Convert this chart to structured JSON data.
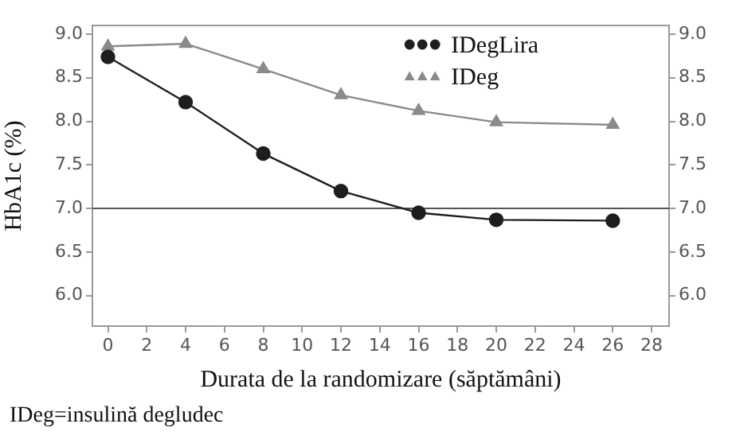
{
  "chart_data": {
    "type": "line",
    "xlabel": "Durata de la randomizare (săptămâni)",
    "ylabel": "HbA1c (%)",
    "x": [
      0,
      4,
      8,
      12,
      16,
      20,
      26
    ],
    "series": [
      {
        "name": "IDegLira",
        "color": "#1e1e1e",
        "marker": "circle",
        "values": [
          8.74,
          8.22,
          7.63,
          7.2,
          6.95,
          6.87,
          6.86
        ]
      },
      {
        "name": "IDeg",
        "color": "#8a8a8a",
        "marker": "triangle",
        "values": [
          8.86,
          8.89,
          8.6,
          8.3,
          8.12,
          7.99,
          7.96
        ]
      }
    ],
    "xlim": [
      -0.8,
      28.9
    ],
    "xticks": [
      0,
      2,
      4,
      6,
      8,
      10,
      12,
      14,
      16,
      18,
      20,
      22,
      24,
      26,
      28
    ],
    "ylim": [
      5.65,
      9.1
    ],
    "yticks": [
      {
        "value": 6,
        "label": "6.0"
      },
      {
        "value": 6.5,
        "label": "6.5"
      },
      {
        "value": 7,
        "label": "7.0"
      },
      {
        "value": 7.5,
        "label": "7.5"
      },
      {
        "value": 8,
        "label": "8.0"
      },
      {
        "value": 8.5,
        "label": "8.5"
      },
      {
        "value": 9,
        "label": "9.0"
      }
    ],
    "y2lim": [
      5.65,
      9.1
    ],
    "y2ticks": [
      {
        "value": 6,
        "label": "6.0"
      },
      {
        "value": 6.5,
        "label": "6.5"
      },
      {
        "value": 7,
        "label": "7.0"
      },
      {
        "value": 7.5,
        "label": "7.5"
      },
      {
        "value": 8,
        "label": "8.0"
      },
      {
        "value": 8.5,
        "label": "8.5"
      },
      {
        "value": 9,
        "label": "9.0"
      }
    ],
    "ref_lines": [
      {
        "axis": "y",
        "value": 7,
        "color": "#555555"
      }
    ],
    "legend": "top right",
    "annotations": [
      "IDeg=insulină degludec"
    ]
  }
}
